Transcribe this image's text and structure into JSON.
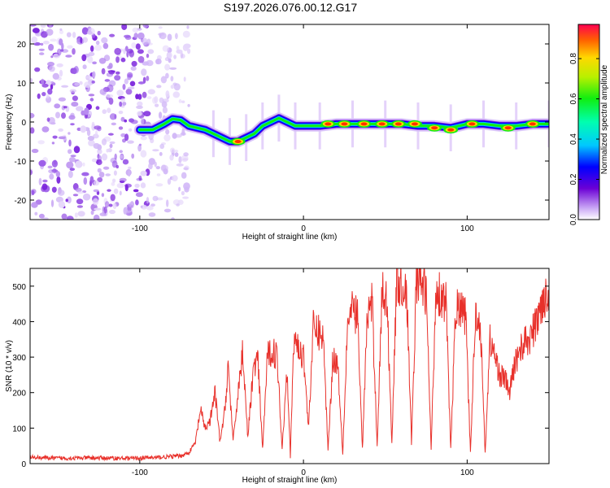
{
  "title": "S197.2026.076.00.12.G17",
  "chart_data": [
    {
      "type": "heatmap",
      "xlabel": "Height of straight line (km)",
      "ylabel": "Frequency (Hz)",
      "xlim": [
        -167,
        150
      ],
      "ylim": [
        -25,
        25
      ],
      "xticks": [
        -100,
        0,
        100
      ],
      "xtick_labels": [
        "-100",
        "0",
        "100"
      ],
      "yticks": [
        -20,
        -10,
        0,
        10,
        20
      ],
      "ytick_labels": [
        "-20",
        "-10",
        "0",
        "10",
        "20"
      ],
      "noise_region_km": [
        -167,
        -70
      ],
      "ridge": {
        "x": [
          -100,
          -92,
          -85,
          -80,
          -75,
          -70,
          -65,
          -60,
          -55,
          -50,
          -45,
          -40,
          -35,
          -30,
          -25,
          -20,
          -15,
          -10,
          -5,
          0,
          10,
          20,
          30,
          40,
          50,
          60,
          70,
          80,
          90,
          100,
          110,
          120,
          130,
          140,
          150
        ],
        "freq": [
          -2,
          -2,
          -0.5,
          0.8,
          0.5,
          -1,
          -1.5,
          -2,
          -3,
          -4,
          -5,
          -5,
          -4,
          -3,
          -1,
          0,
          1,
          0,
          -1,
          -1,
          -1,
          -0.5,
          -0.5,
          -0.5,
          -0.5,
          -0.5,
          -1,
          -1,
          -1.5,
          -0.5,
          -0.5,
          -1,
          -1,
          -0.5,
          -0.5
        ]
      },
      "hotspots": [
        {
          "x": -40,
          "freq": -5
        },
        {
          "x": 15,
          "freq": -0.5
        },
        {
          "x": 25,
          "freq": -0.5
        },
        {
          "x": 37,
          "freq": -0.5
        },
        {
          "x": 48,
          "freq": -0.5
        },
        {
          "x": 58,
          "freq": -0.5
        },
        {
          "x": 68,
          "freq": -0.5
        },
        {
          "x": 80,
          "freq": -1.5
        },
        {
          "x": 90,
          "freq": -2
        },
        {
          "x": 103,
          "freq": -0.5
        },
        {
          "x": 125,
          "freq": -1.5
        },
        {
          "x": 140,
          "freq": -0.5
        }
      ],
      "colorbar": {
        "label": "Normalized spectral amplitude",
        "range": [
          0,
          0.97
        ],
        "ticks": [
          0.0,
          0.2,
          0.4,
          0.6,
          0.8
        ],
        "tick_labels": [
          "0.0",
          "0.2",
          "0.4",
          "0.6",
          "0.8"
        ]
      }
    },
    {
      "type": "line",
      "xlabel": "Height of straight line (km)",
      "ylabel": "SNR (10 * v/v)",
      "xlim": [
        -167,
        150
      ],
      "ylim": [
        0,
        550
      ],
      "xticks": [
        -100,
        0,
        100
      ],
      "xtick_labels": [
        "-100",
        "0",
        "100"
      ],
      "yticks": [
        0,
        100,
        200,
        300,
        400,
        500
      ],
      "ytick_labels": [
        "0",
        "100",
        "200",
        "300",
        "400",
        "500"
      ],
      "series": [
        {
          "name": "SNR",
          "color": "#e8302a",
          "x": [
            -167,
            -150,
            -130,
            -110,
            -90,
            -75,
            -70,
            -66,
            -63,
            -60,
            -57,
            -54,
            -51,
            -48,
            -46,
            -43,
            -40,
            -37,
            -34,
            -31,
            -28,
            -25,
            -22,
            -19,
            -16,
            -13,
            -10,
            -8,
            -6,
            -4,
            -2,
            0,
            3,
            6,
            9,
            12,
            15,
            18,
            21,
            24,
            27,
            30,
            33,
            36,
            39,
            42,
            45,
            48,
            51,
            54,
            57,
            60,
            63,
            66,
            69,
            72,
            75,
            78,
            81,
            84,
            87,
            90,
            93,
            96,
            99,
            102,
            105,
            108,
            111,
            114,
            117,
            120,
            123,
            126,
            129,
            132,
            135,
            138,
            141,
            144,
            147,
            150
          ],
          "values": [
            18,
            15,
            16,
            15,
            17,
            22,
            30,
            60,
            150,
            100,
            120,
            200,
            60,
            150,
            280,
            60,
            200,
            320,
            70,
            250,
            300,
            40,
            300,
            320,
            300,
            40,
            280,
            20,
            330,
            350,
            300,
            320,
            100,
            380,
            370,
            360,
            40,
            300,
            280,
            30,
            400,
            430,
            420,
            40,
            420,
            450,
            50,
            480,
            460,
            60,
            520,
            500,
            490,
            60,
            520,
            510,
            480,
            40,
            500,
            470,
            460,
            40,
            440,
            430,
            420,
            30,
            420,
            400,
            30,
            350,
            300,
            250,
            240,
            200,
            280,
            320,
            340,
            350,
            380,
            420,
            480,
            450
          ]
        }
      ]
    }
  ]
}
